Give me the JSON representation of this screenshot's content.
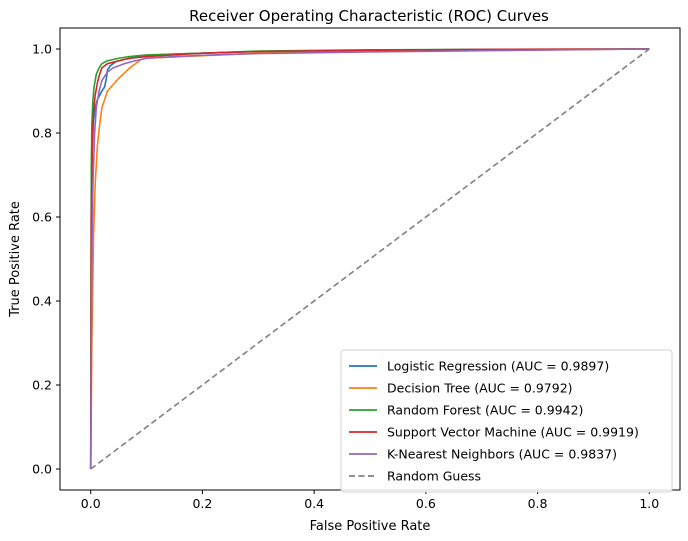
{
  "chart_data": {
    "type": "line",
    "title": "Receiver Operating Characteristic (ROC) Curves",
    "xlabel": "False Positive Rate",
    "ylabel": "True Positive Rate",
    "xlim": [
      -0.055,
      1.055
    ],
    "ylim": [
      -0.05,
      1.05
    ],
    "xticks": [
      "0.0",
      "0.2",
      "0.4",
      "0.6",
      "0.8",
      "1.0"
    ],
    "yticks": [
      "0.0",
      "0.2",
      "0.4",
      "0.6",
      "0.8",
      "1.0"
    ],
    "grid": false,
    "legend_position": "lower-right",
    "series": [
      {
        "name": "Logistic Regression (AUC = 0.9897)",
        "color": "#1f77b4",
        "style": "solid",
        "x": [
          0,
          0.001,
          0.003,
          0.005,
          0.008,
          0.012,
          0.016,
          0.02,
          0.025,
          0.028,
          0.03,
          0.035,
          0.045,
          0.06,
          0.08,
          0.1,
          0.15,
          0.2,
          0.3,
          0.4,
          0.6,
          0.8,
          1.0
        ],
        "y": [
          0,
          0.62,
          0.78,
          0.83,
          0.86,
          0.88,
          0.89,
          0.9,
          0.91,
          0.93,
          0.95,
          0.96,
          0.97,
          0.975,
          0.98,
          0.985,
          0.988,
          0.99,
          0.994,
          0.996,
          0.998,
          0.999,
          1.0
        ]
      },
      {
        "name": "Decision Tree (AUC = 0.9792)",
        "color": "#ff7f0e",
        "style": "solid",
        "x": [
          0,
          0.002,
          0.005,
          0.008,
          0.012,
          0.016,
          0.02,
          0.03,
          0.05,
          0.07,
          0.09,
          0.1,
          0.15,
          0.2,
          0.3,
          0.4,
          0.6,
          0.8,
          1.0
        ],
        "y": [
          0,
          0.3,
          0.55,
          0.68,
          0.77,
          0.82,
          0.86,
          0.9,
          0.93,
          0.955,
          0.975,
          0.978,
          0.981,
          0.984,
          0.99,
          0.993,
          0.996,
          0.998,
          1.0
        ]
      },
      {
        "name": "Random Forest (AUC = 0.9942)",
        "color": "#2ca02c",
        "style": "solid",
        "x": [
          0,
          0.001,
          0.002,
          0.004,
          0.006,
          0.01,
          0.015,
          0.02,
          0.03,
          0.05,
          0.07,
          0.1,
          0.15,
          0.2,
          0.3,
          0.5,
          0.7,
          1.0
        ],
        "y": [
          0,
          0.72,
          0.82,
          0.88,
          0.91,
          0.94,
          0.955,
          0.965,
          0.972,
          0.978,
          0.982,
          0.986,
          0.988,
          0.99,
          0.995,
          0.998,
          0.999,
          1.0
        ]
      },
      {
        "name": "Support Vector Machine (AUC = 0.9919)",
        "color": "#d62728",
        "style": "solid",
        "x": [
          0,
          0.001,
          0.003,
          0.005,
          0.008,
          0.012,
          0.016,
          0.02,
          0.03,
          0.05,
          0.07,
          0.1,
          0.15,
          0.2,
          0.3,
          0.5,
          0.7,
          1.0
        ],
        "y": [
          0,
          0.6,
          0.78,
          0.85,
          0.89,
          0.92,
          0.94,
          0.955,
          0.965,
          0.972,
          0.978,
          0.982,
          0.986,
          0.99,
          0.994,
          0.997,
          0.999,
          1.0
        ]
      },
      {
        "name": "K-Nearest Neighbors (AUC = 0.9837)",
        "color": "#9467bd",
        "style": "solid",
        "x": [
          0,
          0.002,
          0.004,
          0.007,
          0.01,
          0.015,
          0.02,
          0.03,
          0.04,
          0.06,
          0.08,
          0.1,
          0.15,
          0.2,
          0.3,
          0.5,
          0.7,
          1.0
        ],
        "y": [
          0,
          0.5,
          0.68,
          0.8,
          0.86,
          0.9,
          0.925,
          0.945,
          0.955,
          0.965,
          0.972,
          0.978,
          0.982,
          0.985,
          0.989,
          0.993,
          0.996,
          1.0
        ]
      },
      {
        "name": "Random Guess",
        "color": "#808080",
        "style": "dashed",
        "x": [
          0,
          1
        ],
        "y": [
          0,
          1
        ]
      }
    ]
  }
}
